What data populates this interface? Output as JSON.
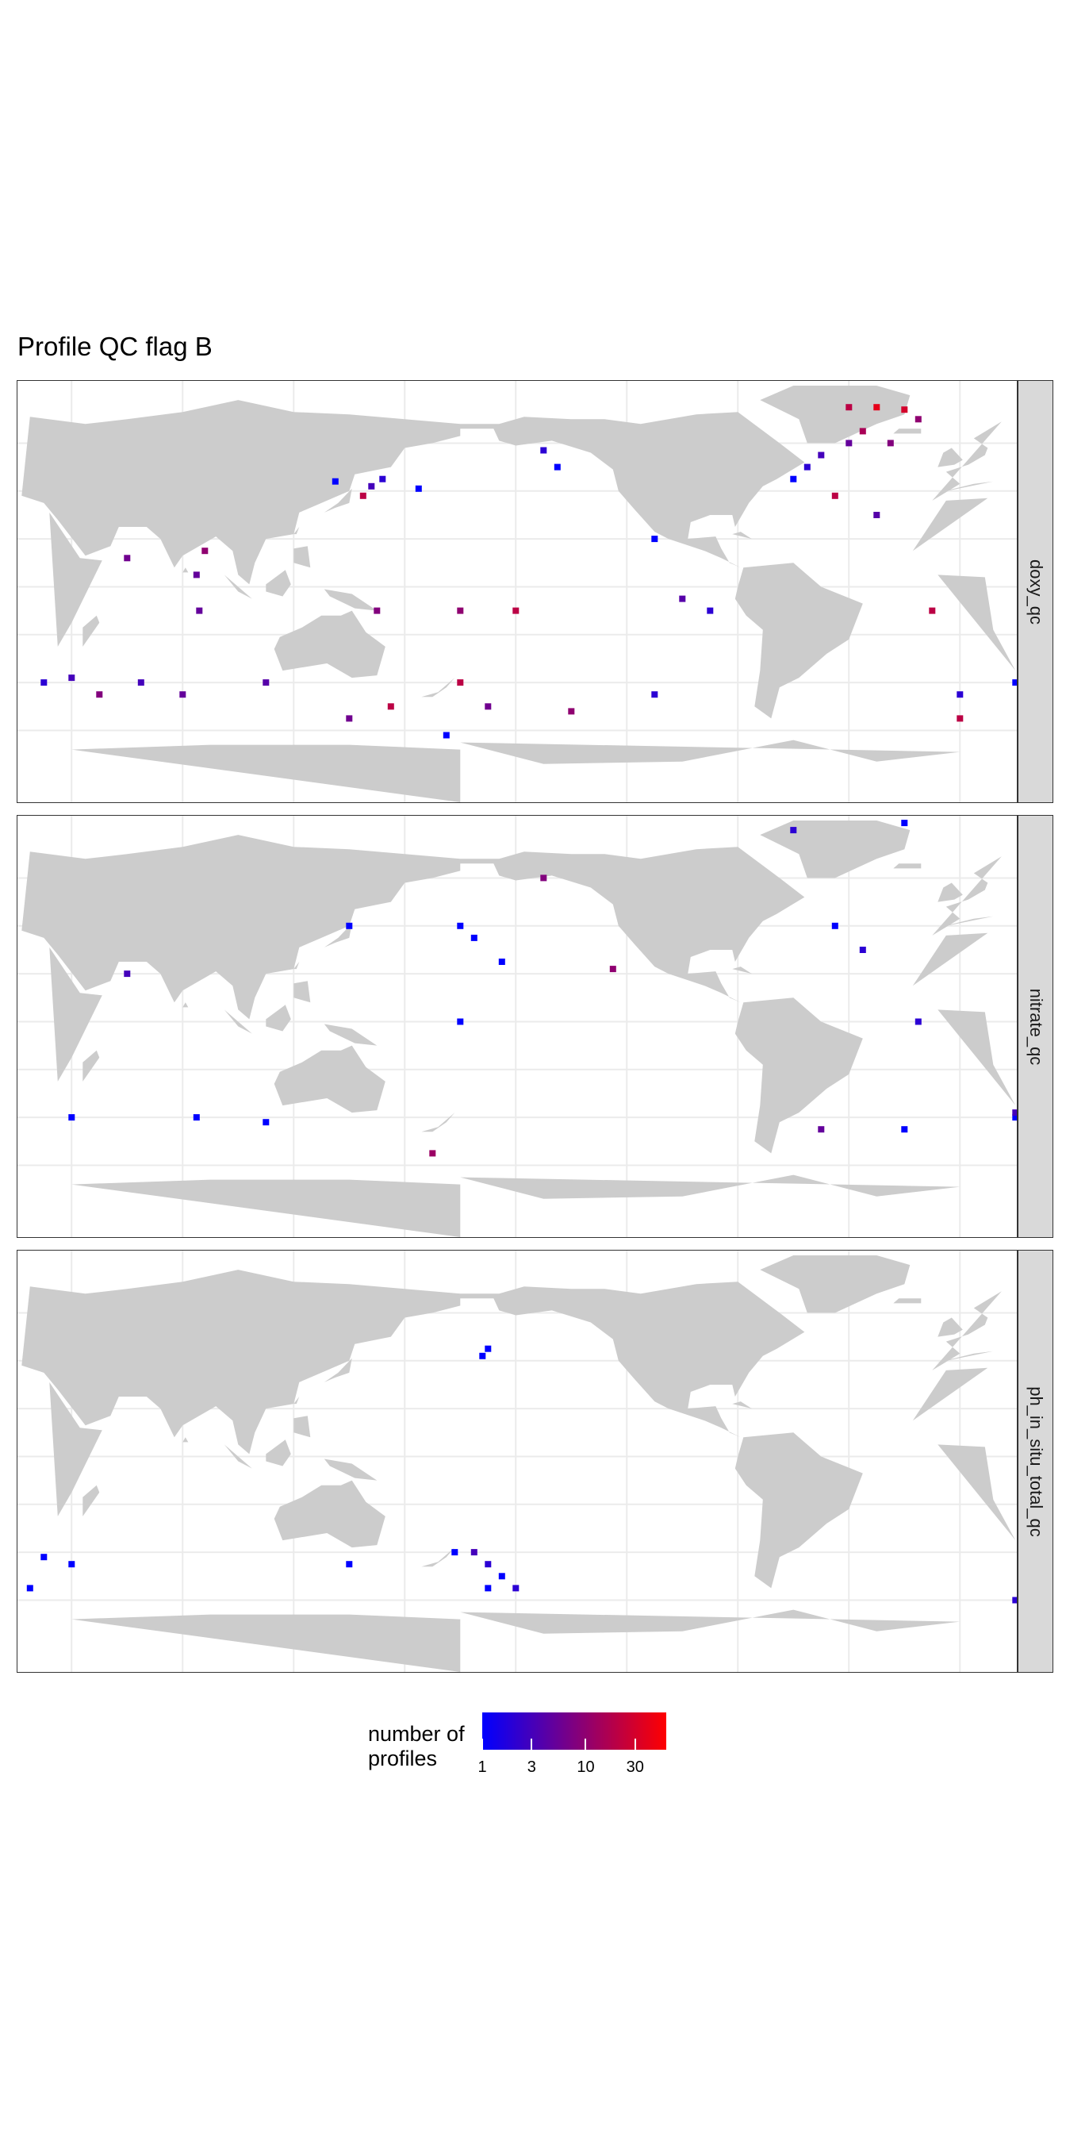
{
  "title": "Profile QC flag B",
  "palette": {
    "land": "#cccccc",
    "ocean": "#ffffff",
    "grid": "#ebebeb",
    "low": "#0000ff",
    "high": "#ff0000"
  },
  "map": {
    "projection": "Pacific-centred equirectangular (central meridian ~160°E)",
    "graticule_longitudes": [
      -160,
      -120,
      -80,
      -40,
      0,
      40,
      80,
      120,
      160
    ],
    "graticule_latitudes": [
      -60,
      -40,
      -20,
      0,
      20,
      40,
      60
    ]
  },
  "chart_data": {
    "type": "heatmap",
    "description_note": "",
    "value": "number of profiles",
    "facets": [
      {
        "label": "doxy_qc",
        "cells": [
          {
            "lon": -40,
            "lat": 75,
            "n": 20
          },
          {
            "lon": -30,
            "lat": 75,
            "n": 40
          },
          {
            "lon": -20,
            "lat": 74,
            "n": 30
          },
          {
            "lon": -15,
            "lat": 70,
            "n": 10
          },
          {
            "lon": -35,
            "lat": 65,
            "n": 15
          },
          {
            "lon": -25,
            "lat": 60,
            "n": 8
          },
          {
            "lon": -40,
            "lat": 60,
            "n": 5
          },
          {
            "lon": -50,
            "lat": 55,
            "n": 3
          },
          {
            "lon": -55,
            "lat": 50,
            "n": 2
          },
          {
            "lon": -60,
            "lat": 45,
            "n": 1
          },
          {
            "lon": -45,
            "lat": 38,
            "n": 20
          },
          {
            "lon": -30,
            "lat": 30,
            "n": 4
          },
          {
            "lon": 145,
            "lat": 38,
            "n": 20
          },
          {
            "lon": 148,
            "lat": 42,
            "n": 3
          },
          {
            "lon": 152,
            "lat": 45,
            "n": 2
          },
          {
            "lon": 135,
            "lat": 44,
            "n": 1
          },
          {
            "lon": 165,
            "lat": 41,
            "n": 1
          },
          {
            "lon": -150,
            "lat": 57,
            "n": 2
          },
          {
            "lon": -145,
            "lat": 50,
            "n": 1
          },
          {
            "lon": 60,
            "lat": 12,
            "n": 6
          },
          {
            "lon": 88,
            "lat": 15,
            "n": 10
          },
          {
            "lon": 85,
            "lat": 5,
            "n": 5
          },
          {
            "lon": 86,
            "lat": -10,
            "n": 5
          },
          {
            "lon": 65,
            "lat": -40,
            "n": 3
          },
          {
            "lon": 110,
            "lat": -40,
            "n": 4
          },
          {
            "lon": 150,
            "lat": -10,
            "n": 8
          },
          {
            "lon": 180,
            "lat": -10,
            "n": 10
          },
          {
            "lon": -160,
            "lat": -10,
            "n": 20
          },
          {
            "lon": 30,
            "lat": -40,
            "n": 2
          },
          {
            "lon": 50,
            "lat": -45,
            "n": 8
          },
          {
            "lon": 80,
            "lat": -45,
            "n": 5
          },
          {
            "lon": 155,
            "lat": -50,
            "n": 20
          },
          {
            "lon": 180,
            "lat": -40,
            "n": 20
          },
          {
            "lon": -170,
            "lat": -50,
            "n": 6
          },
          {
            "lon": -140,
            "lat": -52,
            "n": 10
          },
          {
            "lon": -110,
            "lat": -45,
            "n": 2
          },
          {
            "lon": -90,
            "lat": -10,
            "n": 2
          },
          {
            "lon": -110,
            "lat": 20,
            "n": 1
          },
          {
            "lon": -100,
            "lat": -5,
            "n": 4
          },
          {
            "lon": -10,
            "lat": -10,
            "n": 20
          },
          {
            "lon": 0,
            "lat": -45,
            "n": 2
          },
          {
            "lon": 20,
            "lat": -40,
            "n": 1
          },
          {
            "lon": 40,
            "lat": -38,
            "n": 3
          },
          {
            "lon": 0,
            "lat": -55,
            "n": 20
          },
          {
            "lon": 175,
            "lat": -62,
            "n": 1
          },
          {
            "lon": 140,
            "lat": -55,
            "n": 6
          }
        ]
      },
      {
        "label": "nitrate_qc",
        "cells": [
          {
            "lon": -150,
            "lat": 60,
            "n": 8
          },
          {
            "lon": -125,
            "lat": 22,
            "n": 10
          },
          {
            "lon": -165,
            "lat": 25,
            "n": 1
          },
          {
            "lon": -175,
            "lat": 35,
            "n": 1
          },
          {
            "lon": 140,
            "lat": 40,
            "n": 1
          },
          {
            "lon": 180,
            "lat": 40,
            "n": 1
          },
          {
            "lon": 60,
            "lat": 20,
            "n": 3
          },
          {
            "lon": -35,
            "lat": 30,
            "n": 2
          },
          {
            "lon": -45,
            "lat": 40,
            "n": 1
          },
          {
            "lon": -15,
            "lat": 0,
            "n": 2
          },
          {
            "lon": -180,
            "lat": 0,
            "n": 1
          },
          {
            "lon": 20,
            "lat": -40,
            "n": 1
          },
          {
            "lon": 40,
            "lat": -40,
            "n": 1
          },
          {
            "lon": 85,
            "lat": -40,
            "n": 1
          },
          {
            "lon": 110,
            "lat": -42,
            "n": 1
          },
          {
            "lon": 170,
            "lat": -55,
            "n": 12
          },
          {
            "lon": -50,
            "lat": -45,
            "n": 5
          },
          {
            "lon": -20,
            "lat": -45,
            "n": 1
          },
          {
            "lon": 20,
            "lat": -38,
            "n": 3
          },
          {
            "lon": -60,
            "lat": 80,
            "n": 2
          },
          {
            "lon": -20,
            "lat": 83,
            "n": 1
          }
        ]
      },
      {
        "label": "ph_in_situ_total_qc",
        "cells": [
          {
            "lon": -170,
            "lat": 45,
            "n": 1
          },
          {
            "lon": -172,
            "lat": 42,
            "n": 1
          },
          {
            "lon": 178,
            "lat": -40,
            "n": 1
          },
          {
            "lon": -175,
            "lat": -40,
            "n": 3
          },
          {
            "lon": -170,
            "lat": -45,
            "n": 2
          },
          {
            "lon": -165,
            "lat": -50,
            "n": 1
          },
          {
            "lon": -160,
            "lat": -55,
            "n": 2
          },
          {
            "lon": -170,
            "lat": -55,
            "n": 1
          },
          {
            "lon": 140,
            "lat": -45,
            "n": 1
          },
          {
            "lon": 40,
            "lat": -45,
            "n": 1
          },
          {
            "lon": 20,
            "lat": -60,
            "n": 2
          },
          {
            "lon": 25,
            "lat": -55,
            "n": 1
          },
          {
            "lon": 30,
            "lat": -42,
            "n": 1
          }
        ]
      }
    ],
    "legend": {
      "title": "number of\nprofiles",
      "title_line1": "number of",
      "title_line2": "profiles",
      "scale": "log",
      "breaks": [
        "1",
        "3",
        "10",
        "30"
      ],
      "break_values": [
        1,
        3,
        10,
        30
      ],
      "limits": [
        1,
        60
      ]
    }
  }
}
